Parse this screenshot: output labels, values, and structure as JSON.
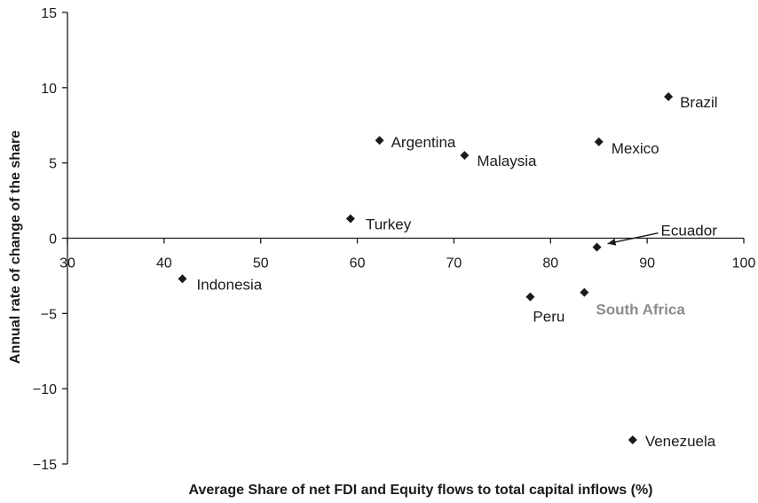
{
  "chart_data": {
    "type": "scatter",
    "xlabel": "Average Share of net FDI and Equity flows to total capital inflows (%)",
    "ylabel": "Annual rate of change of the share",
    "xlim": [
      30,
      100
    ],
    "ylim": [
      -15,
      15
    ],
    "xticks": [
      30,
      40,
      50,
      60,
      70,
      80,
      90,
      100
    ],
    "yticks": [
      15,
      10,
      5,
      0,
      -5,
      -10,
      -15
    ],
    "ytick_labels": [
      "15",
      "10",
      "5",
      "0",
      "−5",
      "−10",
      "−15"
    ],
    "grid": false,
    "marker": "diamond",
    "marker_color": "#1a1a1a",
    "highlight_color": "#8c8c8c",
    "points": [
      {
        "label": "Brazil",
        "x": 92.2,
        "y": 9.4
      },
      {
        "label": "Argentina",
        "x": 62.3,
        "y": 6.5
      },
      {
        "label": "Mexico",
        "x": 85.0,
        "y": 6.4
      },
      {
        "label": "Malaysia",
        "x": 71.1,
        "y": 5.5
      },
      {
        "label": "Turkey",
        "x": 59.3,
        "y": 1.3
      },
      {
        "label": "Ecuador",
        "x": 84.8,
        "y": -0.6
      },
      {
        "label": "Indonesia",
        "x": 41.9,
        "y": -2.7
      },
      {
        "label": "Peru",
        "x": 77.9,
        "y": -3.9
      },
      {
        "label": "South Africa",
        "x": 83.5,
        "y": -3.6,
        "highlight": true
      },
      {
        "label": "Venezuela",
        "x": 88.5,
        "y": -13.4
      }
    ]
  }
}
